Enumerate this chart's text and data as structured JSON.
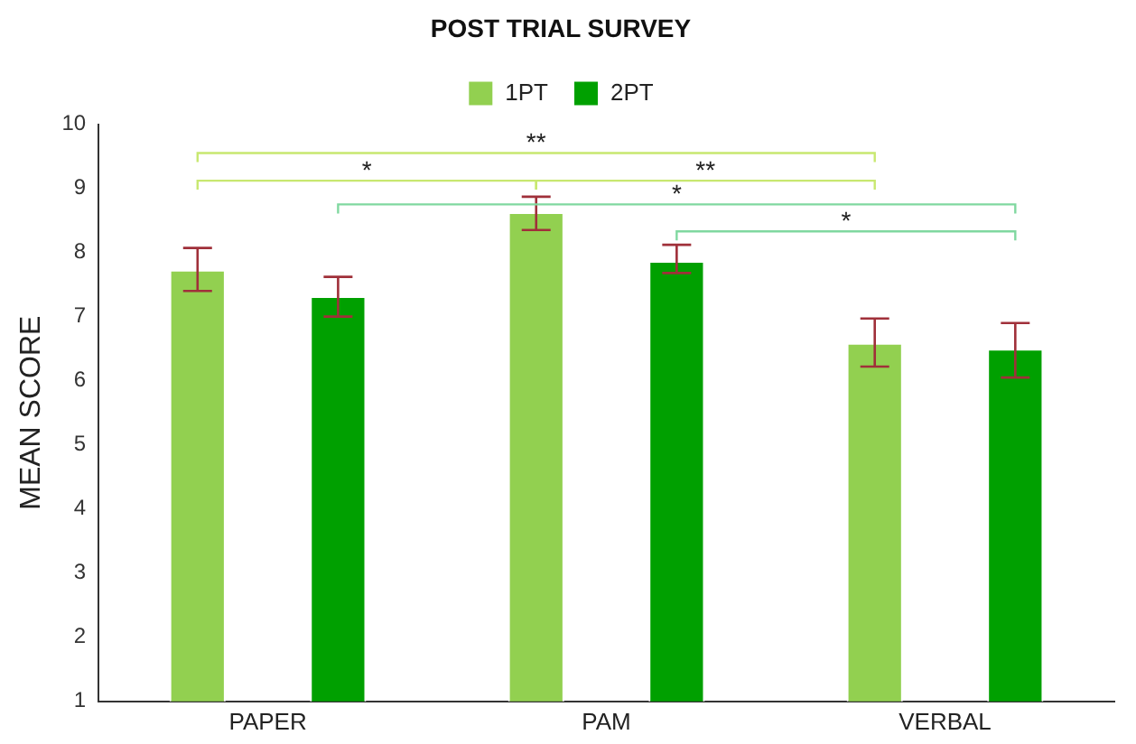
{
  "chart_data": {
    "type": "bar",
    "title": "POST TRIAL SURVEY",
    "ylabel": "MEAN SCORE",
    "categories": [
      "PAPER",
      "PAM",
      "VERBAL"
    ],
    "series": [
      {
        "name": "1PT",
        "color": "#92d050",
        "values": [
          7.73,
          8.63,
          6.59
        ],
        "errors": [
          [
            7.4,
            8.07
          ],
          [
            8.35,
            8.87
          ],
          [
            6.22,
            6.97
          ]
        ]
      },
      {
        "name": "2PT",
        "color": "#00a000",
        "values": [
          7.32,
          7.87,
          6.5
        ],
        "errors": [
          [
            7.0,
            7.62
          ],
          [
            7.68,
            8.12
          ],
          [
            6.05,
            6.9
          ]
        ]
      }
    ],
    "ylim": [
      1,
      10
    ],
    "yticks": [
      1,
      2,
      3,
      4,
      5,
      6,
      7,
      8,
      9,
      10
    ],
    "grid": false,
    "legend": "top",
    "annotations": [
      "**",
      "*",
      "**",
      "*",
      "*"
    ]
  }
}
